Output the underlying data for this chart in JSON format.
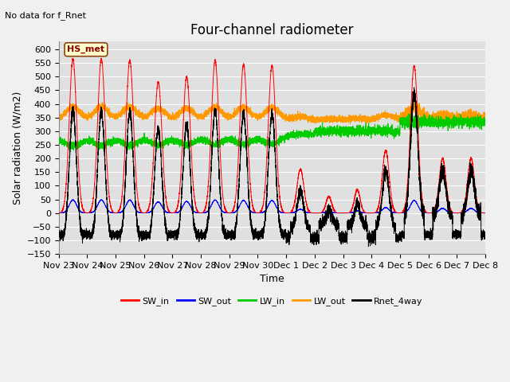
{
  "title": "Four-channel radiometer",
  "subtitle": "No data for f_Rnet",
  "ylabel": "Solar radiation (W/m2)",
  "xlabel": "Time",
  "legend_label": "HS_met",
  "ylim": [
    -150,
    630
  ],
  "yticks": [
    -150,
    -100,
    -50,
    0,
    50,
    100,
    150,
    200,
    250,
    300,
    350,
    400,
    450,
    500,
    550,
    600
  ],
  "x_tick_labels": [
    "Nov 23",
    "Nov 24",
    "Nov 25",
    "Nov 26",
    "Nov 27",
    "Nov 28",
    "Nov 29",
    "Nov 30",
    "Dec 1",
    "Dec 2",
    "Dec 3",
    "Dec 4",
    "Dec 5",
    "Dec 6",
    "Dec 7",
    "Dec 8"
  ],
  "colors": {
    "SW_in": "#ff0000",
    "SW_out": "#0000ff",
    "LW_in": "#00cc00",
    "LW_out": "#ff9900",
    "Rnet_4way": "#000000"
  },
  "plot_bg_color": "#e0e0e0",
  "grid_color": "#ffffff",
  "title_fontsize": 12,
  "label_fontsize": 9,
  "tick_fontsize": 8
}
